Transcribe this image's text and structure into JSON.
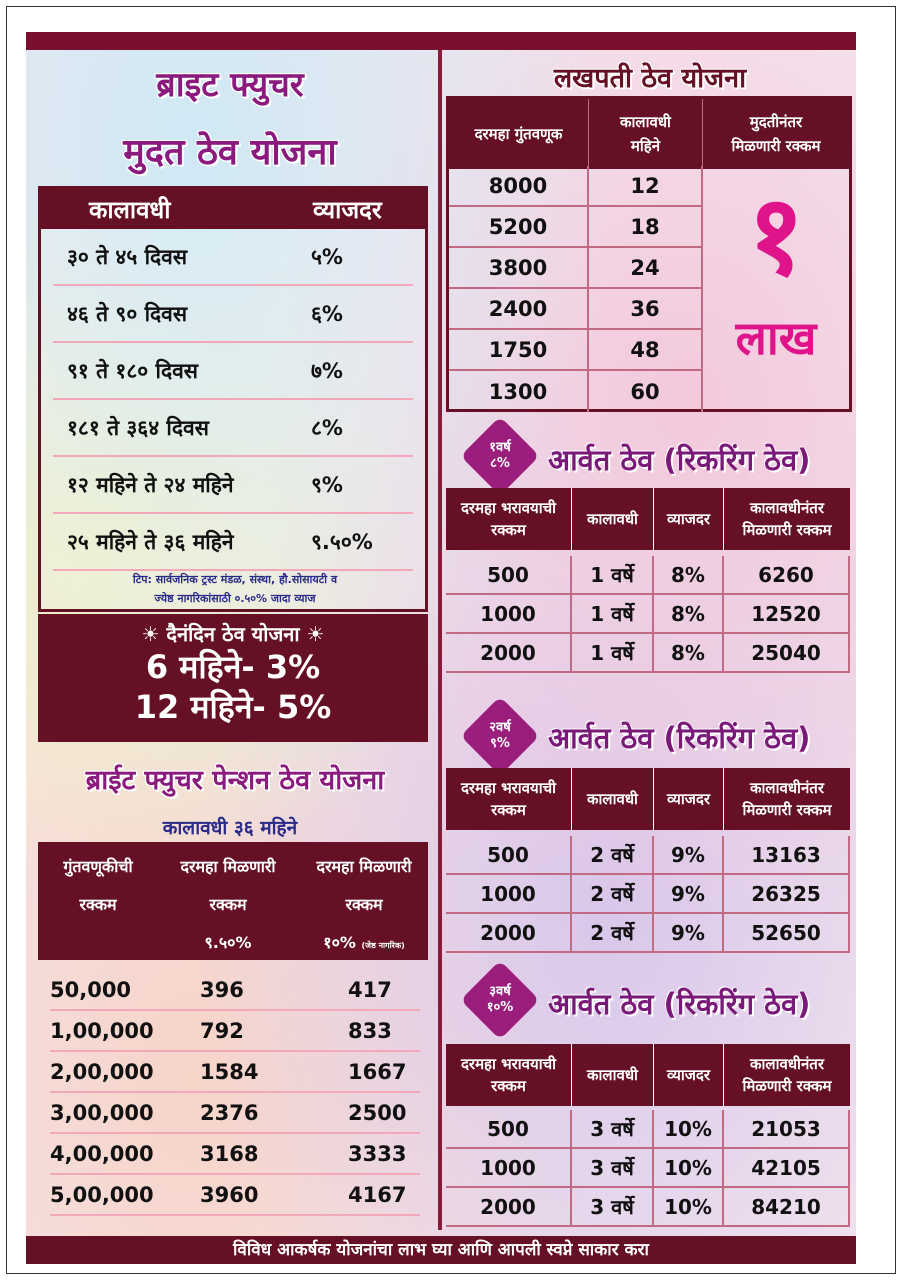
{
  "fd": {
    "title1": "ब्राइट फ्युचर",
    "title2": "मुदत ठेव योजना",
    "col_period": "कालावधी",
    "col_rate": "व्याजदर",
    "rows": [
      {
        "period": "३० ते ४५ दिवस",
        "rate": "५%"
      },
      {
        "period": "४६ ते ९० दिवस",
        "rate": "६%"
      },
      {
        "period": "९१ ते १८० दिवस",
        "rate": "७%"
      },
      {
        "period": "१८१ ते ३६४ दिवस",
        "rate": "८%"
      },
      {
        "period": "१२ महिने ते २४ महिने",
        "rate": "९%"
      },
      {
        "period": "२५ महिने ते ३६ महिने",
        "rate": "९.५०%"
      }
    ],
    "tip1": "टिप: सार्वजनिक ट्रस्ट मंडळ, संस्था, हौ.सोसायटी व",
    "tip2": "ज्येष्ठ नागरिकांसाठी ०.५०% जादा व्याज"
  },
  "daily": {
    "title": "☀ दैनंदिन ठेव योजना ☀",
    "line1": "6 महिने- 3%",
    "line2": "12 महिने- 5%"
  },
  "pension": {
    "title": "ब्राईट फ्युचर पेन्शन ठेव योजना",
    "duration": "कालावधी ३६ महिने",
    "h1a": "गुंतवणूकीची",
    "h1b": "रक्कम",
    "h2a": "दरमहा मिळणारी",
    "h2b": "रक्कम",
    "h2c": "९.५०%",
    "h3a": "दरमहा मिळणारी",
    "h3b": "रक्कम",
    "h3c": "१०%",
    "h3d": "(जेष्ठ नागरिक)",
    "rows": [
      {
        "amt": "50,000",
        "m1": "396",
        "m2": "417"
      },
      {
        "amt": "1,00,000",
        "m1": "792",
        "m2": "833"
      },
      {
        "amt": "2,00,000",
        "m1": "1584",
        "m2": "1667"
      },
      {
        "amt": "3,00,000",
        "m1": "2376",
        "m2": "2500"
      },
      {
        "amt": "4,00,000",
        "m1": "3168",
        "m2": "3333"
      },
      {
        "amt": "5,00,000",
        "m1": "3960",
        "m2": "4167"
      }
    ]
  },
  "lakhpati": {
    "title": "लखपती ठेव योजना",
    "h1": "दरमहा गुंतवणूक",
    "h2a": "कालावधी",
    "h2b": "महिने",
    "h3a": "मुदतीनंतर",
    "h3b": "मिळणारी रक्कम",
    "rows": [
      {
        "amt": "8000",
        "months": "12"
      },
      {
        "amt": "5200",
        "months": "18"
      },
      {
        "amt": "3800",
        "months": "24"
      },
      {
        "amt": "2400",
        "months": "36"
      },
      {
        "amt": "1750",
        "months": "48"
      },
      {
        "amt": "1300",
        "months": "60"
      }
    ],
    "big_num": "१",
    "big_unit": "लाख"
  },
  "rd_headers": {
    "h1a": "दरमहा भरावयाची",
    "h1b": "रक्कम",
    "h2": "कालावधी",
    "h3": "व्याजदर",
    "h4a": "कालावधीनंतर",
    "h4b": "मिळणारी रक्कम"
  },
  "rd": [
    {
      "badge1": "१वर्ष",
      "badge2": "८%",
      "title": "आर्वत ठेव (रिकरिंग ठेव)",
      "rows": [
        {
          "amt": "500",
          "period": "1 वर्षे",
          "rate": "8%",
          "maturity": "6260"
        },
        {
          "amt": "1000",
          "period": "1 वर्षे",
          "rate": "8%",
          "maturity": "12520"
        },
        {
          "amt": "2000",
          "period": "1 वर्षे",
          "rate": "8%",
          "maturity": "25040"
        }
      ]
    },
    {
      "badge1": "२वर्ष",
      "badge2": "९%",
      "title": "आर्वत ठेव (रिकरिंग ठेव)",
      "rows": [
        {
          "amt": "500",
          "period": "2 वर्षे",
          "rate": "9%",
          "maturity": "13163"
        },
        {
          "amt": "1000",
          "period": "2 वर्षे",
          "rate": "9%",
          "maturity": "26325"
        },
        {
          "amt": "2000",
          "period": "2 वर्षे",
          "rate": "9%",
          "maturity": "52650"
        }
      ]
    },
    {
      "badge1": "३वर्ष",
      "badge2": "१०%",
      "title": "आर्वत ठेव (रिकरिंग ठेव)",
      "rows": [
        {
          "amt": "500",
          "period": "3 वर्षे",
          "rate": "10%",
          "maturity": "21053"
        },
        {
          "amt": "1000",
          "period": "3 वर्षे",
          "rate": "10%",
          "maturity": "42105"
        },
        {
          "amt": "2000",
          "period": "3 वर्षे",
          "rate": "10%",
          "maturity": "84210"
        }
      ]
    }
  ],
  "footer": "विविध आकर्षक योजनांचा लाभ घ्या आणि आपली स्वप्ने साकार करा"
}
